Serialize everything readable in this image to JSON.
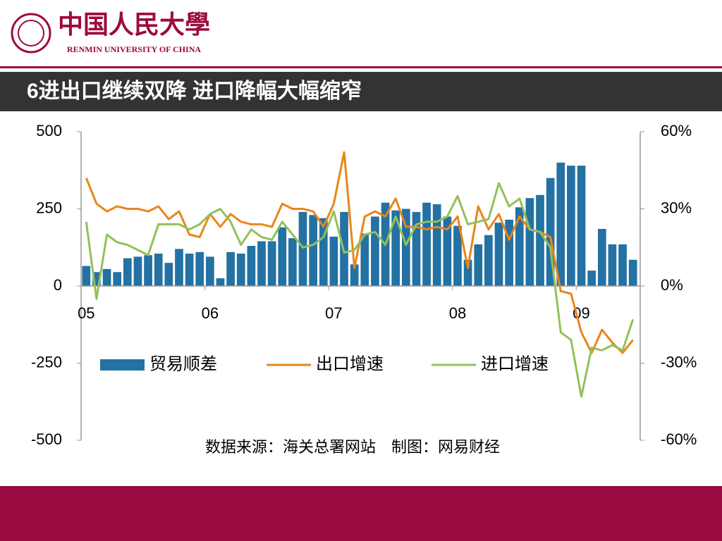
{
  "header": {
    "university_cn": "中国人民大學",
    "university_en": "RENMIN UNIVERSITY OF CHINA"
  },
  "chart_data": {
    "type": "bar-line",
    "title": "6进出口继续双降 进口降幅大幅缩窄",
    "source": "数据来源：海关总署网站　制图：网易财经",
    "categories": [
      "05",
      null,
      null,
      null,
      null,
      null,
      null,
      null,
      null,
      null,
      null,
      null,
      "06",
      null,
      null,
      null,
      null,
      null,
      null,
      null,
      null,
      null,
      null,
      null,
      "07",
      null,
      null,
      null,
      null,
      null,
      null,
      null,
      null,
      null,
      null,
      null,
      "08",
      null,
      null,
      null,
      null,
      null,
      null,
      null,
      null,
      null,
      null,
      null,
      "09",
      null,
      null,
      null,
      null,
      null
    ],
    "series": [
      {
        "name": "贸易顺差",
        "color": "#2471a3",
        "kind": "bar",
        "values": [
          65,
          45,
          55,
          45,
          90,
          95,
          100,
          105,
          75,
          120,
          105,
          110,
          95,
          25,
          110,
          105,
          130,
          145,
          145,
          190,
          155,
          240,
          230,
          220,
          160,
          240,
          70,
          170,
          225,
          270,
          245,
          250,
          240,
          270,
          265,
          225,
          195,
          85,
          135,
          165,
          205,
          215,
          255,
          285,
          295,
          350,
          400,
          390,
          390,
          50,
          185,
          135,
          135,
          85
        ]
      },
      {
        "name": "出口增速",
        "color": "#e8861a",
        "kind": "line",
        "axis": "y2",
        "values": [
          42,
          32,
          29,
          31,
          30,
          30,
          29,
          31,
          26,
          29,
          20,
          19,
          28,
          23,
          28,
          25,
          24,
          24,
          23,
          32,
          30,
          30,
          29,
          23,
          32,
          52,
          7,
          27,
          29,
          27,
          34,
          23,
          23,
          22,
          23,
          22,
          27,
          7,
          31,
          22,
          28,
          18,
          27,
          22,
          21,
          19,
          -2,
          -3,
          -18,
          -26,
          -17,
          -22,
          -26,
          -21
        ]
      },
      {
        "name": "进口增速",
        "color": "#93c05a",
        "kind": "line",
        "axis": "y2",
        "values": [
          25,
          -5,
          20,
          17,
          16,
          14,
          12,
          24,
          24,
          24,
          22,
          24,
          28,
          30,
          25,
          16,
          22,
          19,
          18,
          25,
          20,
          15,
          16,
          19,
          29,
          13,
          14,
          20,
          21,
          16,
          27,
          16,
          24,
          25,
          25,
          27,
          35,
          24,
          25,
          26,
          40,
          31,
          34,
          22,
          21,
          15,
          -18,
          -21,
          -43,
          -24,
          -25,
          -23,
          -25,
          -13
        ]
      }
    ],
    "ylim": [
      -500,
      500
    ],
    "yticks": [
      -500,
      -250,
      0,
      250,
      500
    ],
    "y2lim": [
      -60,
      60
    ],
    "y2ticks": [
      {
        "value": -60,
        "label": "-60%"
      },
      {
        "value": -30,
        "label": "-30%"
      },
      {
        "value": 0,
        "label": "0%"
      },
      {
        "value": 30,
        "label": "30%"
      },
      {
        "value": 60,
        "label": "60%"
      }
    ],
    "grid": false
  }
}
